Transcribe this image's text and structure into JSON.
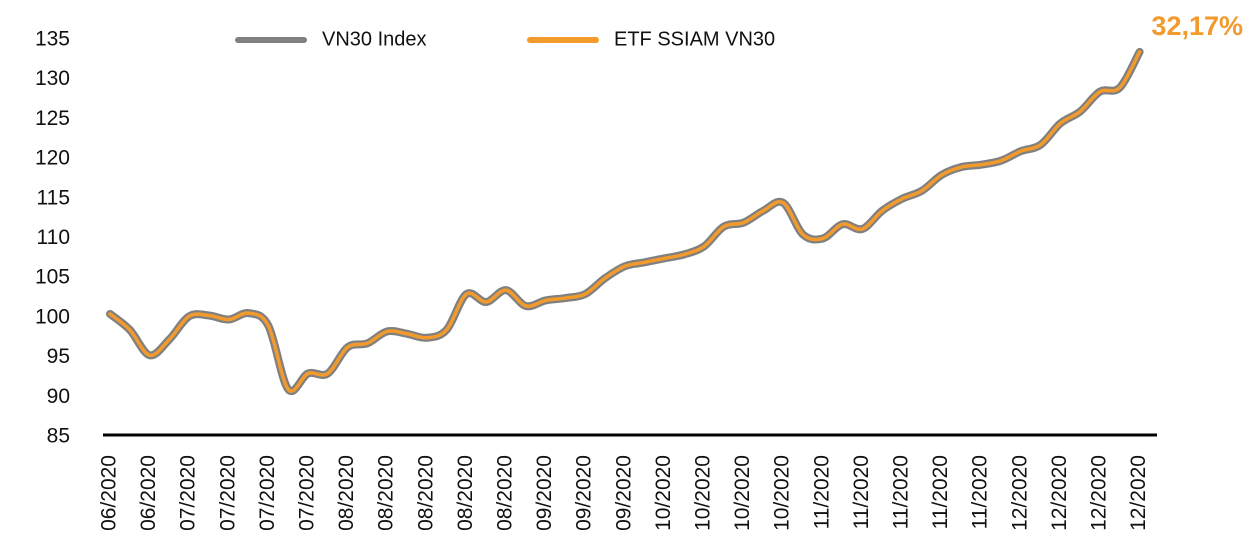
{
  "chart_data": {
    "type": "line",
    "categories": [
      "06/2020",
      null,
      "06/2020",
      null,
      "07/2020",
      null,
      "07/2020",
      null,
      "07/2020",
      null,
      "07/2020",
      null,
      "08/2020",
      null,
      "08/2020",
      null,
      "08/2020",
      null,
      "08/2020",
      null,
      "08/2020",
      null,
      "09/2020",
      null,
      "09/2020",
      null,
      "09/2020",
      null,
      "10/2020",
      null,
      "10/2020",
      null,
      "10/2020",
      null,
      "10/2020",
      null,
      "11/2020",
      null,
      "11/2020",
      null,
      "11/2020",
      null,
      "11/2020",
      null,
      "11/2020",
      null,
      "12/2020",
      null,
      "12/2020",
      null,
      "12/2020",
      null,
      "12/2020"
    ],
    "series": [
      {
        "name": "VN30 Index",
        "color": "#808080",
        "values": [
          100.5,
          98.5,
          95.3,
          97.3,
          100.2,
          100.3,
          99.8,
          100.6,
          99,
          91,
          93,
          93,
          96.3,
          96.8,
          98.3,
          98,
          97.5,
          98.5,
          103,
          102,
          103.5,
          101.5,
          102.2,
          102.5,
          103,
          105,
          106.5,
          107,
          107.5,
          108,
          109,
          111.5,
          112,
          113.5,
          114.5,
          110.5,
          110,
          111.8,
          111.2,
          113.5,
          115,
          116,
          118,
          119,
          119.3,
          119.8,
          121,
          121.8,
          124.5,
          126,
          128.5,
          129,
          133.5
        ]
      },
      {
        "name": "ETF SSIAM VN30",
        "color": "#f39a2d",
        "values": [
          100.5,
          98.5,
          95.3,
          97.3,
          100.2,
          100.3,
          99.8,
          100.6,
          99,
          91,
          93,
          93,
          96.3,
          96.8,
          98.3,
          98,
          97.5,
          98.5,
          103,
          102,
          103.5,
          101.5,
          102.2,
          102.5,
          103,
          105,
          106.5,
          107,
          107.5,
          108,
          109,
          111.5,
          112,
          113.5,
          114.5,
          110.5,
          110,
          111.8,
          111.2,
          113.5,
          115,
          116,
          118,
          119,
          119.3,
          119.8,
          121,
          121.8,
          124.5,
          126,
          128.5,
          129,
          133.5
        ]
      }
    ],
    "annotation": "32,17%",
    "ylim": [
      85,
      135
    ],
    "yticks": [
      85,
      90,
      95,
      100,
      105,
      110,
      115,
      120,
      125,
      130,
      135
    ],
    "legend": "top",
    "grid": false
  }
}
